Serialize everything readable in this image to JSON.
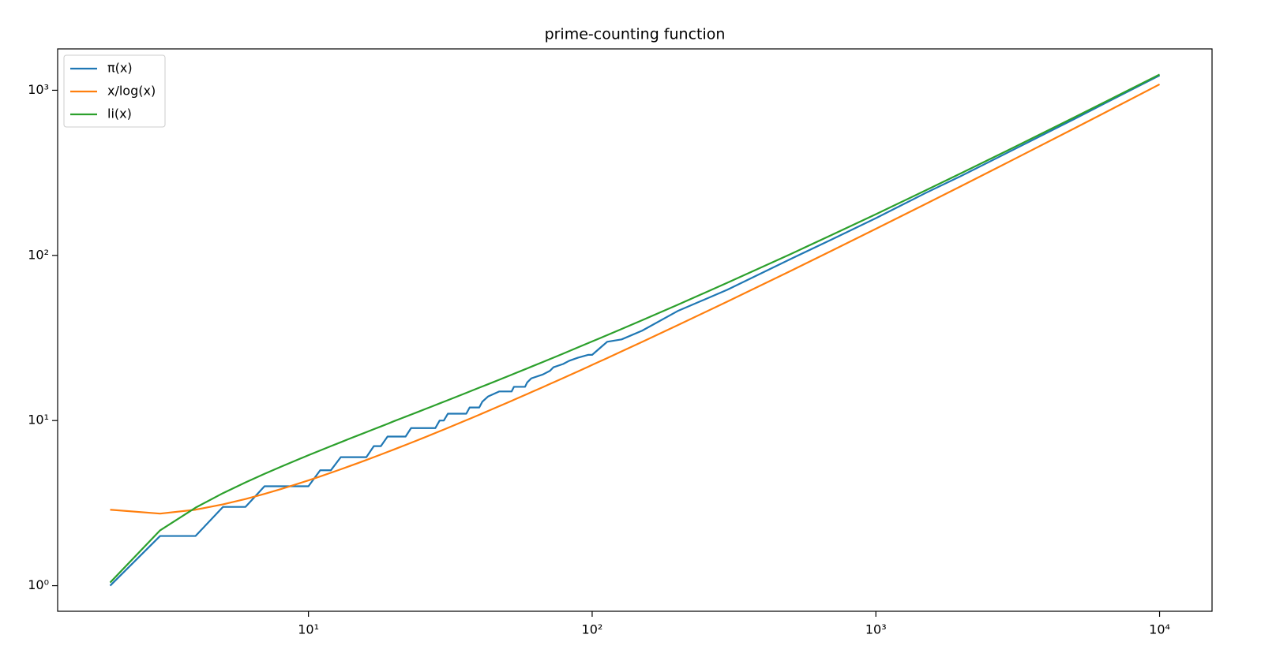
{
  "chart_data": {
    "type": "line",
    "title": "prime-counting function",
    "xscale": "log",
    "yscale": "log",
    "x": [
      2,
      3,
      4,
      5,
      6,
      7,
      8,
      9,
      10,
      11,
      12,
      13,
      14,
      15,
      16,
      17,
      18,
      19,
      20,
      21,
      22,
      23,
      24,
      25,
      26,
      27,
      28,
      29,
      30,
      31,
      36,
      37,
      40,
      41,
      43,
      47,
      52,
      53,
      58,
      59,
      61,
      67,
      71,
      73,
      79,
      83,
      89,
      97,
      100,
      113,
      127,
      150,
      200,
      300,
      500,
      700,
      1000,
      1500,
      2000,
      3000,
      5000,
      7000,
      10000
    ],
    "series": [
      {
        "name": "π(x)",
        "color": "#1f77b4",
        "values": [
          1,
          2,
          2,
          3,
          3,
          4,
          4,
          4,
          4,
          5,
          5,
          6,
          6,
          6,
          6,
          7,
          7,
          8,
          8,
          8,
          8,
          9,
          9,
          9,
          9,
          9,
          9,
          10,
          10,
          11,
          11,
          12,
          12,
          13,
          14,
          15,
          15,
          16,
          16,
          17,
          18,
          19,
          20,
          21,
          22,
          23,
          24,
          25,
          25,
          30,
          31,
          35,
          46,
          62,
          95,
          125,
          168,
          239,
          303,
          430,
          669,
          900,
          1229
        ]
      },
      {
        "name": "x/log(x)",
        "color": "#ff7f0e",
        "values": [
          2.885,
          2.731,
          2.885,
          3.107,
          3.349,
          3.597,
          3.847,
          4.096,
          4.343,
          4.587,
          4.829,
          5.068,
          5.305,
          5.539,
          5.771,
          6.0,
          6.228,
          6.453,
          6.676,
          6.898,
          7.117,
          7.335,
          7.552,
          7.767,
          7.98,
          8.192,
          8.403,
          8.612,
          8.82,
          9.027,
          10.046,
          10.247,
          10.843,
          11.041,
          11.433,
          12.207,
          13.16,
          13.349,
          14.284,
          14.47,
          14.839,
          15.934,
          16.656,
          17.014,
          18.08,
          18.783,
          19.828,
          21.204,
          21.715,
          23.903,
          26.217,
          29.936,
          37.748,
          52.597,
          80.456,
          106.85,
          144.76,
          205.11,
          263.13,
          374.7,
          587.05,
          790.63,
          1085.74
        ]
      },
      {
        "name": "li(x)",
        "color": "#2ca02c",
        "values": [
          1.045,
          2.163,
          2.968,
          3.635,
          4.222,
          4.757,
          5.254,
          5.72,
          6.166,
          6.59,
          7.0,
          7.39,
          7.78,
          8.15,
          8.51,
          8.87,
          9.21,
          9.55,
          9.905,
          10.23,
          10.55,
          10.87,
          11.18,
          11.49,
          11.8,
          12.1,
          12.4,
          12.7,
          12.99,
          13.28,
          14.71,
          14.99,
          15.81,
          16.08,
          16.61,
          17.66,
          18.94,
          19.2,
          20.44,
          20.69,
          21.18,
          22.62,
          23.57,
          24.03,
          25.42,
          26.33,
          27.7,
          29.47,
          30.13,
          32.91,
          35.84,
          40.5,
          50.19,
          68.36,
          101.79,
          133.1,
          177.61,
          247.8,
          314.81,
          442.8,
          684.6,
          914.7,
          1246.1
        ]
      }
    ],
    "xlim": [
      1.306,
      15310
    ],
    "ylim": [
      0.7,
      1780
    ],
    "xticks": [
      {
        "value": 10,
        "label": "10¹"
      },
      {
        "value": 100,
        "label": "10²"
      },
      {
        "value": 1000,
        "label": "10³"
      },
      {
        "value": 10000,
        "label": "10⁴"
      }
    ],
    "yticks": [
      {
        "value": 1,
        "label": "10⁰"
      },
      {
        "value": 10,
        "label": "10¹"
      },
      {
        "value": 100,
        "label": "10²"
      },
      {
        "value": 1000,
        "label": "10³"
      }
    ],
    "legend": "upper left"
  }
}
